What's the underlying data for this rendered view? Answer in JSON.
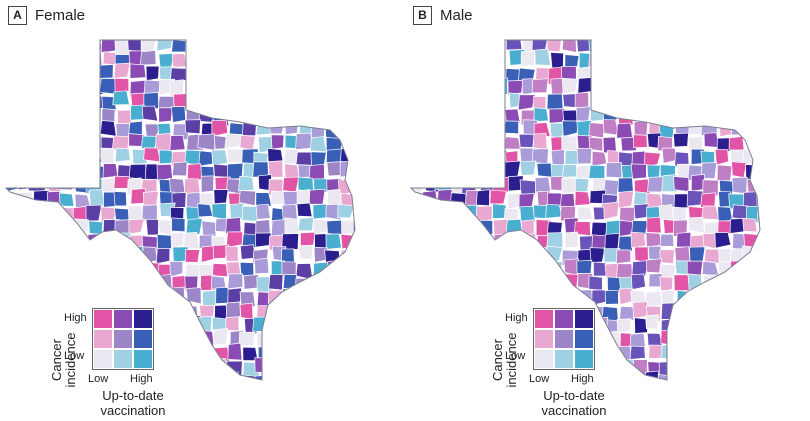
{
  "colors": {
    "pink": "#e255a6",
    "lightpink": "#e8a8d2",
    "purple": "#8b4bb4",
    "midpurple": "#9c86c8",
    "navy": "#2b1e8f",
    "blue": "#3a5fb6",
    "lightblue": "#9fd0e3",
    "cyan": "#4aaed0",
    "white": "#ebe8f2",
    "lavender": "#a99cd8",
    "border": "#7a7f91"
  },
  "legend": {
    "y_title_line1": "Cancer",
    "y_title_line2": "incidence",
    "y_high": "High",
    "y_low": "Low",
    "x_low": "Low",
    "x_high": "High",
    "x_title_line1": "Up-to-date",
    "x_title_line2": "vaccination",
    "swatches": [
      [
        "#e255a6",
        "#8b4bb4",
        "#2b1e8f"
      ],
      [
        "#e8a8d2",
        "#9c86c8",
        "#3a5fb6"
      ],
      [
        "#ebe8f2",
        "#9fd0e3",
        "#4aaed0"
      ]
    ]
  },
  "panels": [
    {
      "letter": "A",
      "title": "Female",
      "palette": [
        "#e255a6",
        "#8b4bb4",
        "#2b1e8f",
        "#e8a8d2",
        "#9c86c8",
        "#3a5fb6",
        "#ebe8f2",
        "#9fd0e3",
        "#4aaed0",
        "#a99cd8",
        "#5b3fa5"
      ]
    },
    {
      "letter": "B",
      "title": "Male",
      "palette": [
        "#e255a6",
        "#8b4bb4",
        "#2b1e8f",
        "#e8a8d2",
        "#a99cd8",
        "#3a5fb6",
        "#ebe8f2",
        "#9fd0e3",
        "#4aaed0",
        "#c07fc4",
        "#6a54b9"
      ]
    }
  ]
}
